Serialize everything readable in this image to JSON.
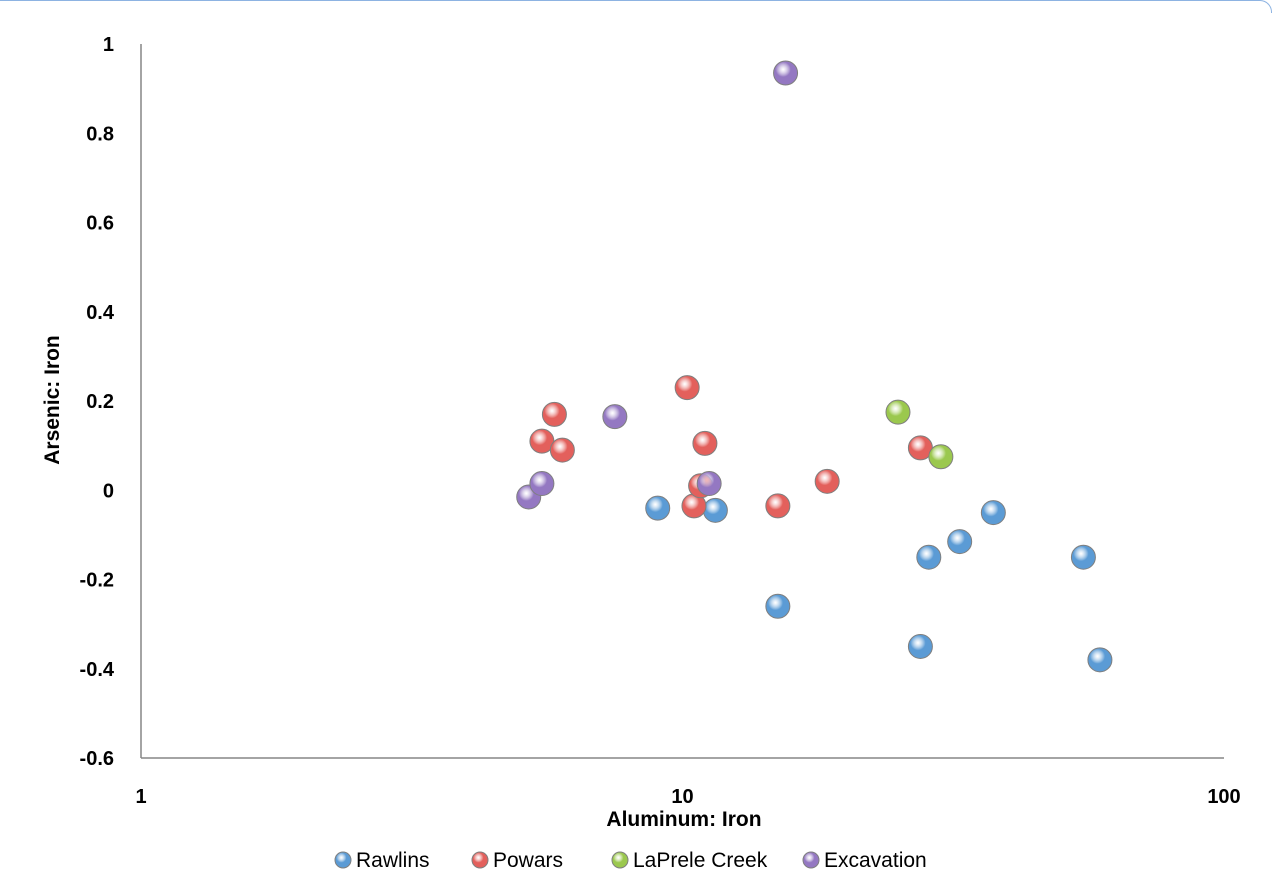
{
  "chart_data": {
    "type": "scatter",
    "xlabel": "Aluminum: Iron",
    "ylabel": "Arsenic: Iron",
    "x_scale": "log",
    "xlim": [
      1,
      100
    ],
    "ylim": [
      -0.6,
      1
    ],
    "x_ticks": [
      "1",
      "10",
      "100"
    ],
    "y_ticks": [
      "1",
      "0.8",
      "0.6",
      "0.4",
      "0.2",
      "0",
      "-0.2",
      "-0.4",
      "-0.6"
    ],
    "legend_position": "bottom",
    "grid": false,
    "series": [
      {
        "name": "Rawlins",
        "color": "#5b9bd5",
        "points": [
          {
            "x": 9.0,
            "y": -0.04
          },
          {
            "x": 11.5,
            "y": -0.045
          },
          {
            "x": 15.0,
            "y": -0.26
          },
          {
            "x": 27.5,
            "y": -0.35
          },
          {
            "x": 28.5,
            "y": -0.15
          },
          {
            "x": 32.5,
            "y": -0.115
          },
          {
            "x": 37.5,
            "y": -0.05
          },
          {
            "x": 55.0,
            "y": -0.15
          },
          {
            "x": 59.0,
            "y": -0.38
          }
        ]
      },
      {
        "name": "Powars",
        "color": "#e3605c",
        "points": [
          {
            "x": 5.5,
            "y": 0.11
          },
          {
            "x": 5.8,
            "y": 0.17
          },
          {
            "x": 6.0,
            "y": 0.09
          },
          {
            "x": 10.2,
            "y": 0.23
          },
          {
            "x": 10.5,
            "y": -0.035
          },
          {
            "x": 10.8,
            "y": 0.01
          },
          {
            "x": 11.0,
            "y": 0.105
          },
          {
            "x": 15.0,
            "y": -0.035
          },
          {
            "x": 18.5,
            "y": 0.02
          },
          {
            "x": 27.5,
            "y": 0.095
          }
        ]
      },
      {
        "name": "LaPrele Creek",
        "color": "#9bc84e",
        "points": [
          {
            "x": 25.0,
            "y": 0.175
          },
          {
            "x": 30.0,
            "y": 0.075
          }
        ]
      },
      {
        "name": "Excavation",
        "color": "#9478c2",
        "points": [
          {
            "x": 5.2,
            "y": -0.015
          },
          {
            "x": 5.5,
            "y": 0.015
          },
          {
            "x": 7.5,
            "y": 0.165
          },
          {
            "x": 11.2,
            "y": 0.015
          },
          {
            "x": 15.5,
            "y": 0.935
          }
        ]
      }
    ]
  }
}
